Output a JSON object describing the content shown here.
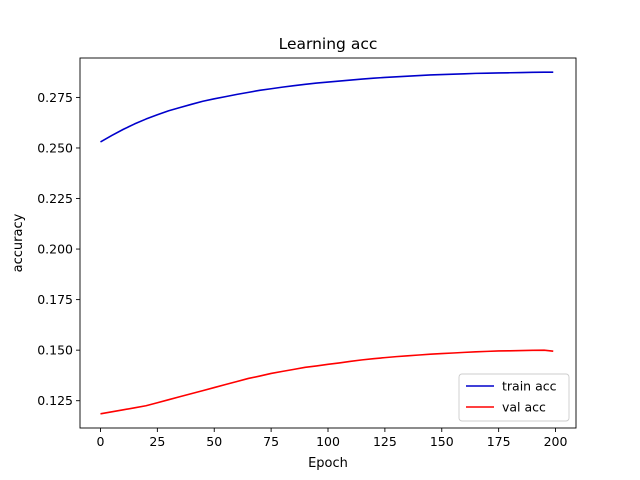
{
  "chart_data": {
    "type": "line",
    "title": "Learning acc",
    "xlabel": "Epoch",
    "ylabel": "accuracy",
    "xlim": [
      -9,
      209
    ],
    "ylim": [
      0.1115,
      0.2945
    ],
    "xticks": [
      0,
      25,
      50,
      75,
      100,
      125,
      150,
      175,
      200
    ],
    "yticks": [
      0.125,
      0.15,
      0.175,
      0.2,
      0.225,
      0.25,
      0.275
    ],
    "ytick_labels": [
      "0.125",
      "0.150",
      "0.175",
      "0.200",
      "0.225",
      "0.250",
      "0.275"
    ],
    "grid": false,
    "legend": "lower-right",
    "series": [
      {
        "name": "train acc",
        "color": "#0000cc",
        "x": [
          0,
          5,
          10,
          15,
          20,
          25,
          30,
          35,
          40,
          45,
          50,
          55,
          60,
          65,
          70,
          75,
          80,
          85,
          90,
          95,
          100,
          105,
          110,
          115,
          120,
          125,
          130,
          135,
          140,
          145,
          150,
          155,
          160,
          165,
          170,
          175,
          180,
          185,
          190,
          195,
          199
        ],
        "y": [
          0.253,
          0.2562,
          0.2592,
          0.2619,
          0.2643,
          0.2664,
          0.2684,
          0.27,
          0.2716,
          0.2731,
          0.2743,
          0.2754,
          0.2765,
          0.2775,
          0.2785,
          0.2793,
          0.2801,
          0.2808,
          0.2815,
          0.2821,
          0.2826,
          0.2831,
          0.2836,
          0.2841,
          0.2845,
          0.2849,
          0.2852,
          0.2855,
          0.2858,
          0.2861,
          0.2863,
          0.2865,
          0.2867,
          0.2869,
          0.287,
          0.2871,
          0.2872,
          0.2873,
          0.2874,
          0.2875,
          0.2875
        ]
      },
      {
        "name": "val acc",
        "color": "#ff0000",
        "x": [
          0,
          5,
          10,
          15,
          20,
          25,
          30,
          35,
          40,
          45,
          50,
          55,
          60,
          65,
          70,
          75,
          80,
          85,
          90,
          95,
          100,
          105,
          110,
          115,
          120,
          125,
          130,
          135,
          140,
          145,
          150,
          155,
          160,
          165,
          170,
          175,
          180,
          185,
          190,
          195,
          199
        ],
        "y": [
          0.1185,
          0.1195,
          0.1205,
          0.1215,
          0.1225,
          0.124,
          0.1255,
          0.127,
          0.1285,
          0.13,
          0.1315,
          0.133,
          0.1345,
          0.136,
          0.1372,
          0.1385,
          0.1395,
          0.1405,
          0.1415,
          0.1422,
          0.143,
          0.1437,
          0.1445,
          0.1452,
          0.1458,
          0.1463,
          0.1468,
          0.1472,
          0.1476,
          0.148,
          0.1483,
          0.1486,
          0.1489,
          0.1492,
          0.1494,
          0.1496,
          0.1497,
          0.1498,
          0.1499,
          0.15,
          0.1495
        ]
      }
    ]
  }
}
